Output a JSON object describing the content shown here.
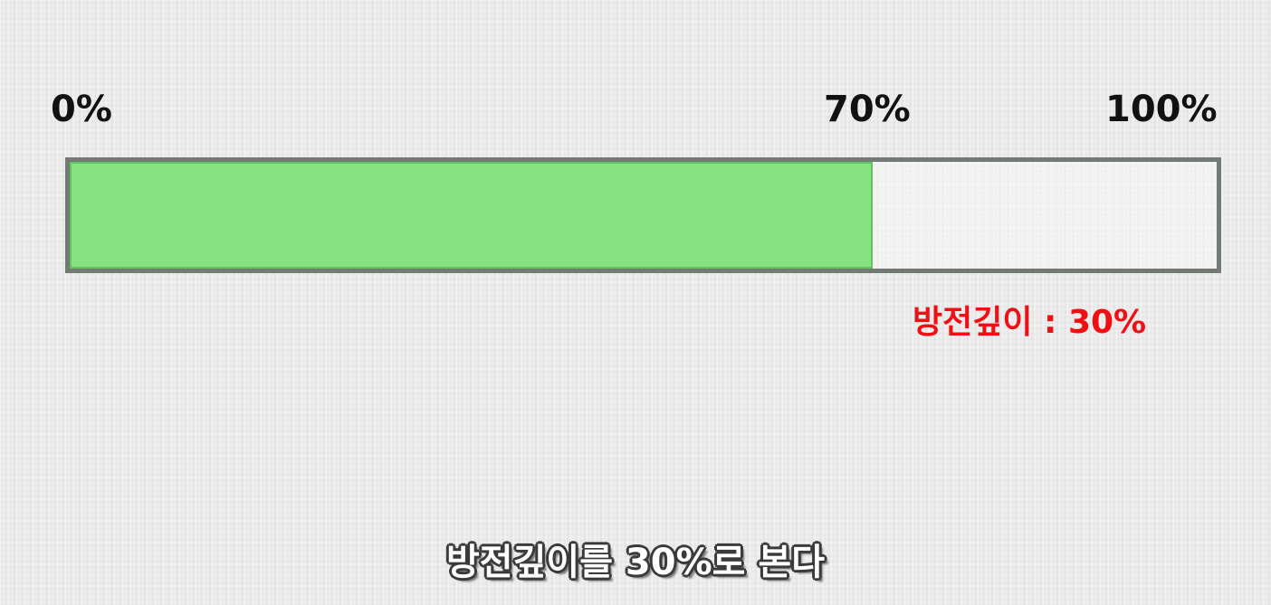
{
  "scale": {
    "start_label": "0%",
    "mark_label": "70%",
    "end_label": "100%"
  },
  "progress_bar": {
    "fill_percent": 70,
    "fill_color": "#86e382",
    "border_color": "#737a73"
  },
  "depth_label": {
    "text": "방전깊이 : 30%",
    "color": "#f20f14"
  },
  "subtitle": {
    "text": "방전깊이를 30%로 본다"
  }
}
